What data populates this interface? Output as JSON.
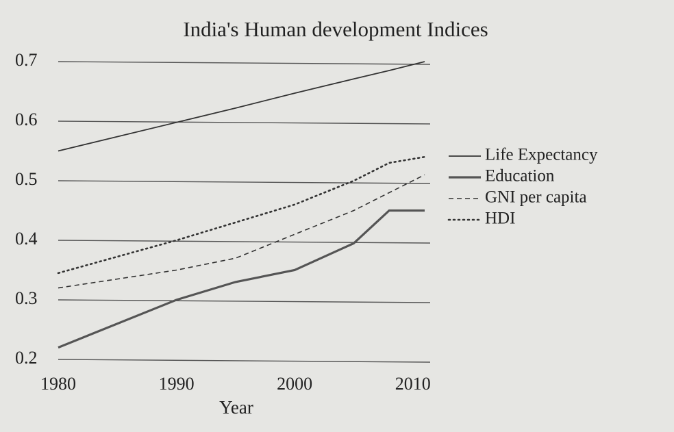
{
  "chart_data": {
    "type": "line",
    "title": "India's Human development Indices",
    "x_label": "Year",
    "x": [
      1980,
      1990,
      1995,
      2000,
      2005,
      2008,
      2011
    ],
    "series": [
      {
        "name": "Life Expectancy",
        "color": "#333333",
        "style": "solid",
        "values": [
          0.55,
          0.598,
          0.622,
          0.647,
          0.671,
          0.685,
          0.7
        ]
      },
      {
        "name": "Education",
        "color": "#555555",
        "style": "thick",
        "values": [
          0.22,
          0.3,
          0.33,
          0.35,
          0.395,
          0.45,
          0.45
        ]
      },
      {
        "name": "GNI per capita",
        "color": "#333333",
        "style": "dashed",
        "values": [
          0.32,
          0.35,
          0.37,
          0.41,
          0.45,
          0.48,
          0.51
        ]
      },
      {
        "name": "HDI",
        "color": "#333333",
        "style": "dotted",
        "values": [
          0.345,
          0.4,
          0.43,
          0.46,
          0.5,
          0.53,
          0.54
        ]
      }
    ],
    "xlim": [
      1980,
      2011
    ],
    "xticks": [
      1980,
      1990,
      2000,
      2010
    ],
    "ylim": [
      0.2,
      0.7
    ],
    "yticks": [
      0.2,
      0.3,
      0.4,
      0.5,
      0.6,
      0.7
    ],
    "grid": true,
    "legend": "right"
  }
}
